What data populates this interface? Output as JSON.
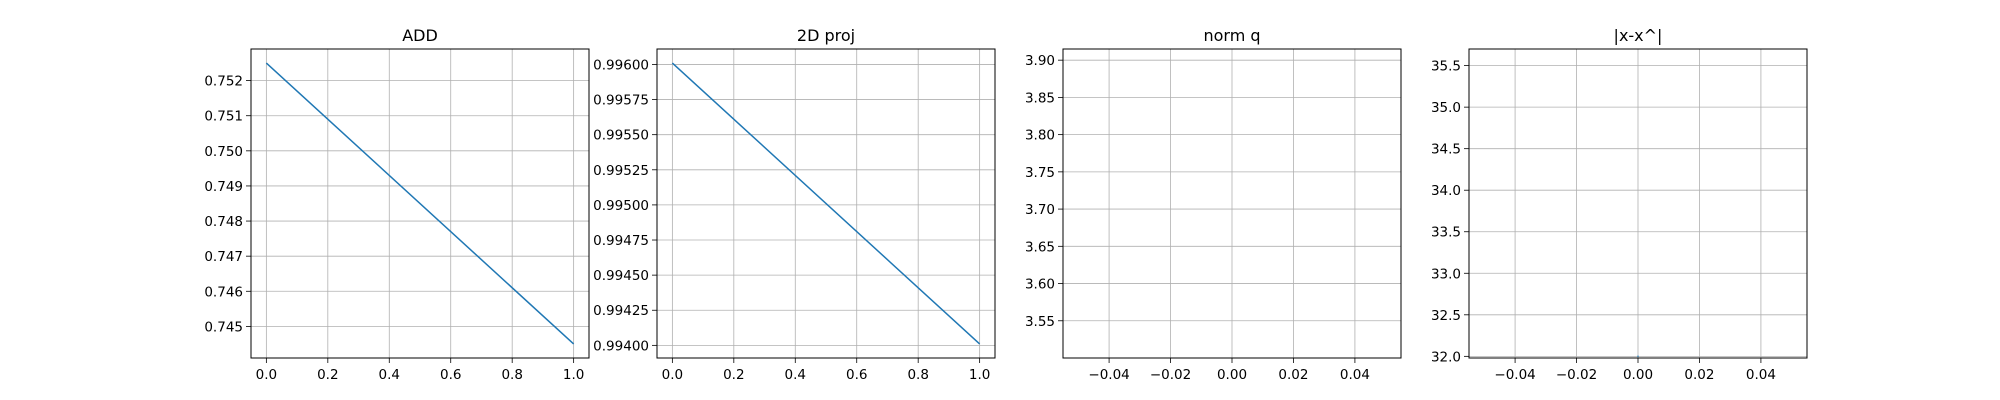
{
  "chart_data": [
    {
      "type": "line",
      "title": "ADD",
      "xlabel": "",
      "ylabel": "",
      "x": [
        0.0,
        1.0
      ],
      "series": [
        {
          "values": [
            0.7525,
            0.7445
          ]
        }
      ],
      "xlim": [
        -0.05,
        1.05
      ],
      "ylim": [
        0.7441,
        0.7529
      ],
      "xticks": [
        0.0,
        0.2,
        0.4,
        0.6,
        0.8,
        1.0
      ],
      "xtick_labels": [
        "0.0",
        "0.2",
        "0.4",
        "0.6",
        "0.8",
        "1.0"
      ],
      "yticks": [
        0.745,
        0.746,
        0.747,
        0.748,
        0.749,
        0.75,
        0.751,
        0.752
      ],
      "ytick_labels": [
        "0.745",
        "0.746",
        "0.747",
        "0.748",
        "0.749",
        "0.750",
        "0.751",
        "0.752"
      ],
      "grid": true,
      "color": "#1f77b4"
    },
    {
      "type": "line",
      "title": "2D proj",
      "xlabel": "",
      "ylabel": "",
      "x": [
        0.0,
        1.0
      ],
      "series": [
        {
          "values": [
            0.99601,
            0.99401
          ]
        }
      ],
      "xlim": [
        -0.05,
        1.05
      ],
      "ylim": [
        0.99391,
        0.99611
      ],
      "xticks": [
        0.0,
        0.2,
        0.4,
        0.6,
        0.8,
        1.0
      ],
      "xtick_labels": [
        "0.0",
        "0.2",
        "0.4",
        "0.6",
        "0.8",
        "1.0"
      ],
      "yticks": [
        0.994,
        0.99425,
        0.9945,
        0.99475,
        0.995,
        0.99525,
        0.9955,
        0.99575,
        0.996
      ],
      "ytick_labels": [
        "0.99400",
        "0.99425",
        "0.99450",
        "0.99475",
        "0.99500",
        "0.99525",
        "0.99550",
        "0.99575",
        "0.99600"
      ],
      "grid": true,
      "color": "#1f77b4"
    },
    {
      "type": "line",
      "title": "norm q",
      "xlabel": "",
      "ylabel": "",
      "x": [],
      "series": [],
      "xlim": [
        -0.055,
        0.055
      ],
      "ylim": [
        3.5,
        3.915
      ],
      "xticks": [
        -0.04,
        -0.02,
        0.0,
        0.02,
        0.04
      ],
      "xtick_labels": [
        "−0.04",
        "−0.02",
        "0.00",
        "0.02",
        "0.04"
      ],
      "yticks": [
        3.55,
        3.6,
        3.65,
        3.7,
        3.75,
        3.8,
        3.85,
        3.9
      ],
      "ytick_labels": [
        "3.55",
        "3.60",
        "3.65",
        "3.70",
        "3.75",
        "3.80",
        "3.85",
        "3.90"
      ],
      "grid": true,
      "color": "#1f77b4"
    },
    {
      "type": "line",
      "title": "|x-x^|",
      "xlabel": "",
      "ylabel": "",
      "x": [
        0.0
      ],
      "series": [
        {
          "values": [
            32.0
          ]
        }
      ],
      "xlim": [
        -0.055,
        0.055
      ],
      "ylim": [
        31.98,
        35.7
      ],
      "xticks": [
        -0.04,
        -0.02,
        0.0,
        0.02,
        0.04
      ],
      "xtick_labels": [
        "−0.04",
        "−0.02",
        "0.00",
        "0.02",
        "0.04"
      ],
      "yticks": [
        32.0,
        32.5,
        33.0,
        33.5,
        34.0,
        34.5,
        35.0,
        35.5
      ],
      "ytick_labels": [
        "32.0",
        "32.5",
        "33.0",
        "33.5",
        "34.0",
        "34.5",
        "35.0",
        "35.5"
      ],
      "grid": true,
      "color": "#1f77b4"
    }
  ]
}
